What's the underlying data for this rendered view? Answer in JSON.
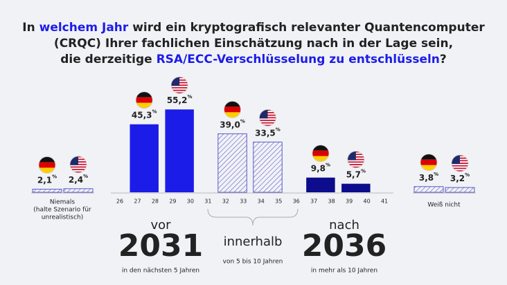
{
  "title": {
    "lines": [
      [
        {
          "text": "In "
        },
        {
          "text": "welchem Jahr",
          "highlight": true
        },
        {
          "text": " wird ein kryptografisch relevanter Quantencomputer"
        }
      ],
      [
        {
          "text": "(CRQC) Ihrer fachlichen Einschätzung nach in der Lage sein,"
        }
      ],
      [
        {
          "text": "die derzeitige "
        },
        {
          "text": "RSA/ECC-Verschlüsselung zu entschlüsseln",
          "highlight": true
        },
        {
          "text": "?"
        }
      ]
    ]
  },
  "chart_data": {
    "type": "bar",
    "value_unit": "%",
    "xticks": [
      26,
      27,
      28,
      29,
      30,
      31,
      32,
      33,
      34,
      35,
      36,
      37,
      38,
      39,
      40,
      41
    ],
    "bars": [
      {
        "span": [
          27,
          28
        ],
        "value": 45.3,
        "value_label": "45,3",
        "flag": "de",
        "color": "#1c1ce8",
        "hatched": false
      },
      {
        "span": [
          29,
          30
        ],
        "value": 55.2,
        "value_label": "55,2",
        "flag": "us",
        "color": "#1c1ce8",
        "hatched": false
      },
      {
        "span": [
          32,
          33
        ],
        "value": 39.0,
        "value_label": "39,0",
        "flag": "de",
        "color": "#5a5ac8",
        "hatched": true
      },
      {
        "span": [
          34,
          35
        ],
        "value": 33.5,
        "value_label": "33,5",
        "flag": "us",
        "color": "#5a5ac8",
        "hatched": true
      },
      {
        "span": [
          37,
          38
        ],
        "value": 9.8,
        "value_label": "9,8",
        "flag": "de",
        "color": "#0c0c8c",
        "hatched": false
      },
      {
        "span": [
          39,
          40
        ],
        "value": 5.7,
        "value_label": "5,7",
        "flag": "us",
        "color": "#0c0c8c",
        "hatched": false
      }
    ],
    "side_groups": [
      {
        "label_lines": [
          "Niemals",
          "(halte Szenario für",
          "unrealistisch)"
        ],
        "color": "#5a5ac8",
        "bars": [
          {
            "value": 2.1,
            "value_label": "2,1",
            "flag": "de"
          },
          {
            "value": 2.4,
            "value_label": "2,4",
            "flag": "us"
          }
        ]
      },
      {
        "label_lines": [
          "Weiß nicht"
        ],
        "color": "#5a5ac8",
        "bars": [
          {
            "value": 3.8,
            "value_label": "3,8",
            "flag": "de"
          },
          {
            "value": 3.2,
            "value_label": "3,2",
            "flag": "us"
          }
        ]
      }
    ],
    "periods": [
      {
        "prefix": "vor",
        "year": "2031",
        "caption": "in den nächsten 5 Jahren"
      },
      {
        "prefix": "innerhalb",
        "caption": "von  5 bis 10 Jahren"
      },
      {
        "prefix": "nach",
        "year": "2036",
        "caption": "in mehr als 10 Jahren"
      }
    ]
  }
}
